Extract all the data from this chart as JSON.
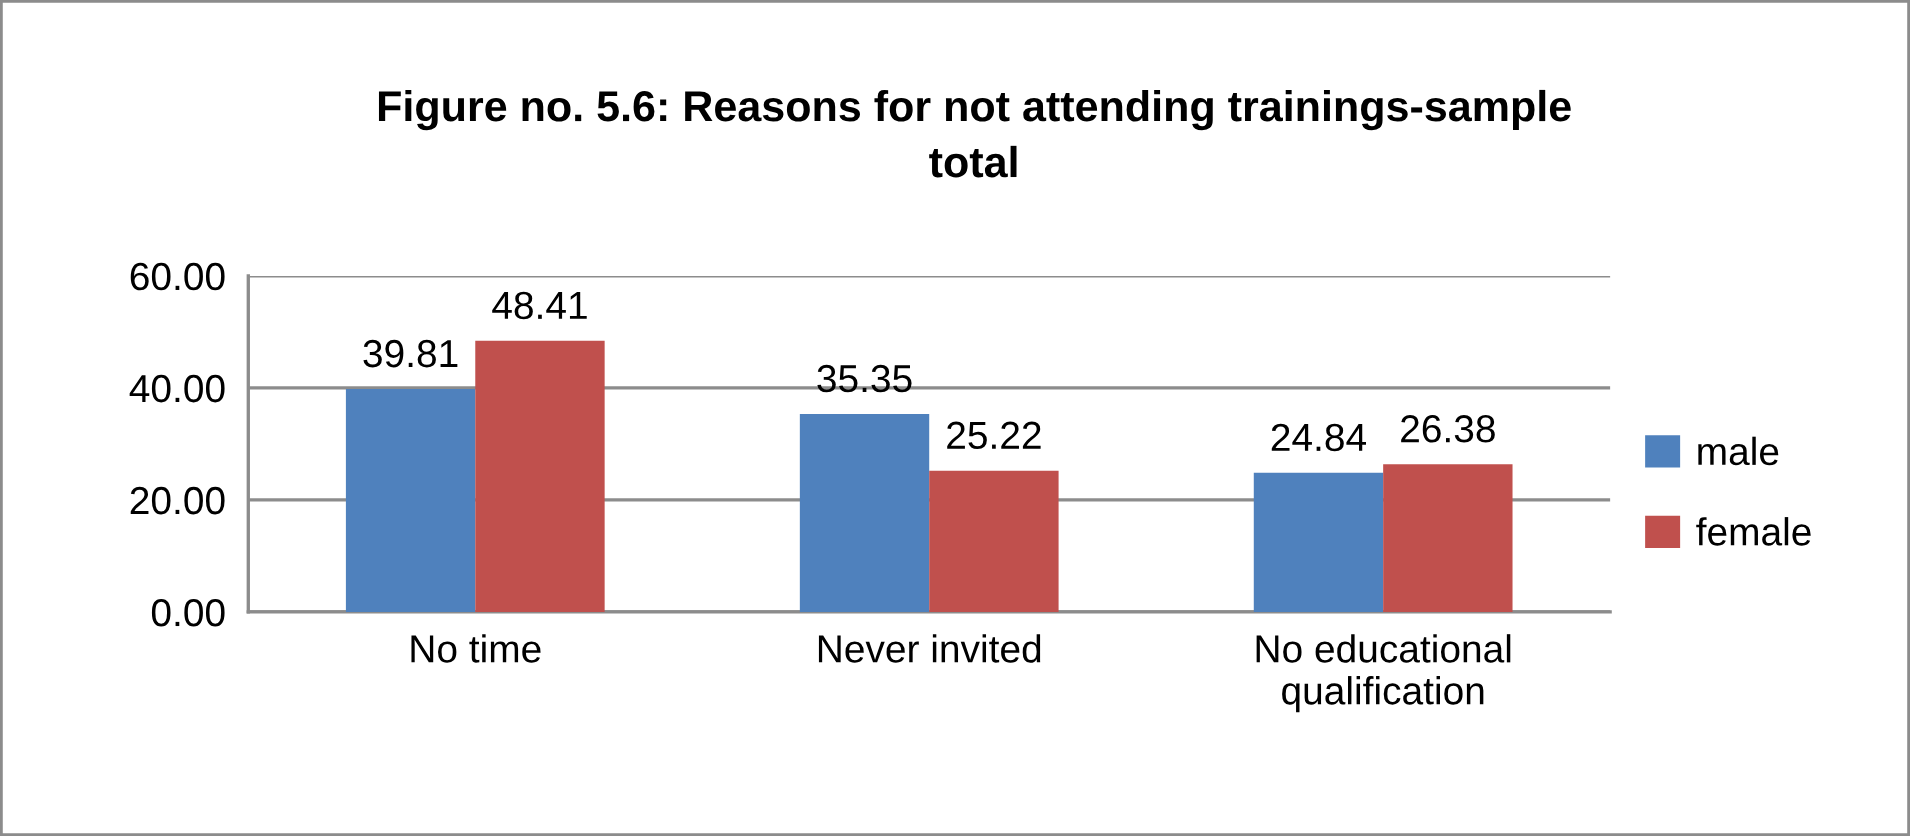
{
  "chart_data": {
    "type": "bar",
    "title": "Figure no. 5.6: Reasons for not attending trainings-sample\ntotal",
    "categories": [
      "No time",
      "Never invited",
      "No educational\nqualification"
    ],
    "series": [
      {
        "name": "male",
        "color": "#4f81bd",
        "values": [
          39.81,
          35.35,
          24.84
        ]
      },
      {
        "name": "female",
        "color": "#c0504d",
        "values": [
          48.41,
          25.22,
          26.38
        ]
      }
    ],
    "ylim": [
      0,
      60
    ],
    "yticks": [
      {
        "value": 0,
        "label": "0.00"
      },
      {
        "value": 20,
        "label": "20.00"
      },
      {
        "value": 40,
        "label": "40.00"
      },
      {
        "value": 60,
        "label": "60.00"
      }
    ],
    "grid": "y",
    "legend": "right",
    "data_labels": true
  }
}
